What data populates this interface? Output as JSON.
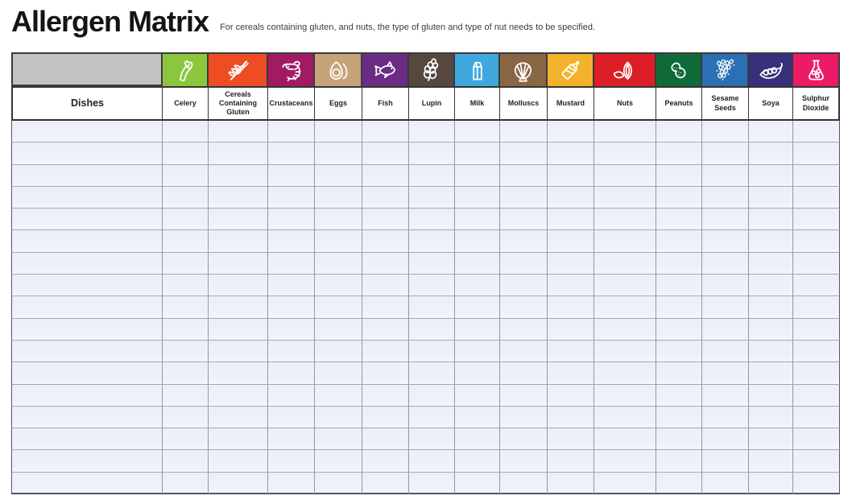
{
  "page": {
    "title": "Allergen Matrix",
    "subtitle": "For cereals containing gluten, and nuts, the type of gluten and type of nut needs to be specified."
  },
  "table": {
    "dishes_header": "Dishes",
    "empty_row_count": 17,
    "columns": [
      {
        "label": "Celery",
        "color": "#8cc63e",
        "icon": "celery-icon"
      },
      {
        "label": "Cereals Containing Gluten",
        "color": "#ee4d23",
        "icon": "wheat-icon"
      },
      {
        "label": "Crustaceans",
        "color": "#a11b63",
        "icon": "shrimp-icon"
      },
      {
        "label": "Eggs",
        "color": "#c8a379",
        "icon": "eggs-icon"
      },
      {
        "label": "Fish",
        "color": "#6c2b84",
        "icon": "fish-icon"
      },
      {
        "label": "Lupin",
        "color": "#56483f",
        "icon": "lupin-flower-icon"
      },
      {
        "label": "Milk",
        "color": "#40a8de",
        "icon": "milk-carton-icon"
      },
      {
        "label": "Molluscs",
        "color": "#8a6744",
        "icon": "scallop-shell-icon"
      },
      {
        "label": "Mustard",
        "color": "#f3b22c",
        "icon": "mustard-bottle-icon"
      },
      {
        "label": "Nuts",
        "color": "#dc1f26",
        "icon": "almonds-icon"
      },
      {
        "label": "Peanuts",
        "color": "#0e6b38",
        "icon": "peanut-icon"
      },
      {
        "label": "Sesame Seeds",
        "color": "#2b6fb4",
        "icon": "sesame-seeds-icon"
      },
      {
        "label": "Soya",
        "color": "#37307b",
        "icon": "pea-pod-icon"
      },
      {
        "label": "Sulphur Dioxide",
        "color": "#ec1b68",
        "icon": "flask-icon"
      }
    ]
  }
}
